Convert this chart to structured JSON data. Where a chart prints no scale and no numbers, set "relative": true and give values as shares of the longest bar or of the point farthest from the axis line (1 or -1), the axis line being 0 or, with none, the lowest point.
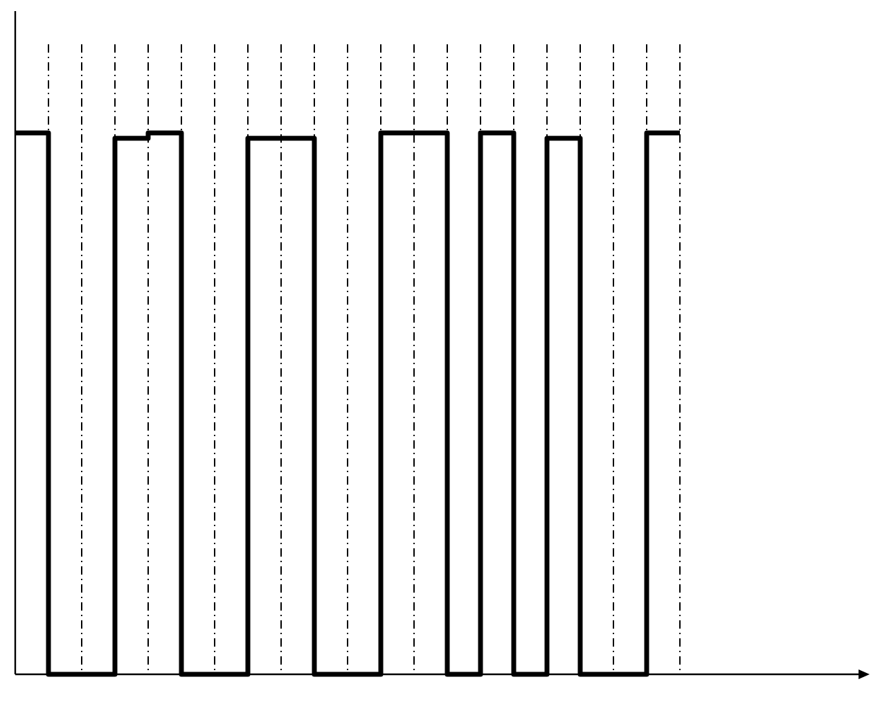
{
  "chart_data": {
    "type": "step",
    "categories": [
      null,
      null,
      null,
      null,
      null,
      null,
      null,
      null,
      null,
      null,
      null,
      null,
      null,
      null,
      null,
      null,
      null,
      null,
      null,
      null,
      null
    ],
    "values": [
      1,
      0,
      0,
      0.99,
      1,
      0,
      0,
      0.99,
      0.99,
      0,
      0,
      1,
      1,
      0,
      1,
      0,
      0.99,
      0,
      0,
      1,
      1
    ],
    "color": "#000000",
    "relative": true,
    "grid": "x"
  }
}
